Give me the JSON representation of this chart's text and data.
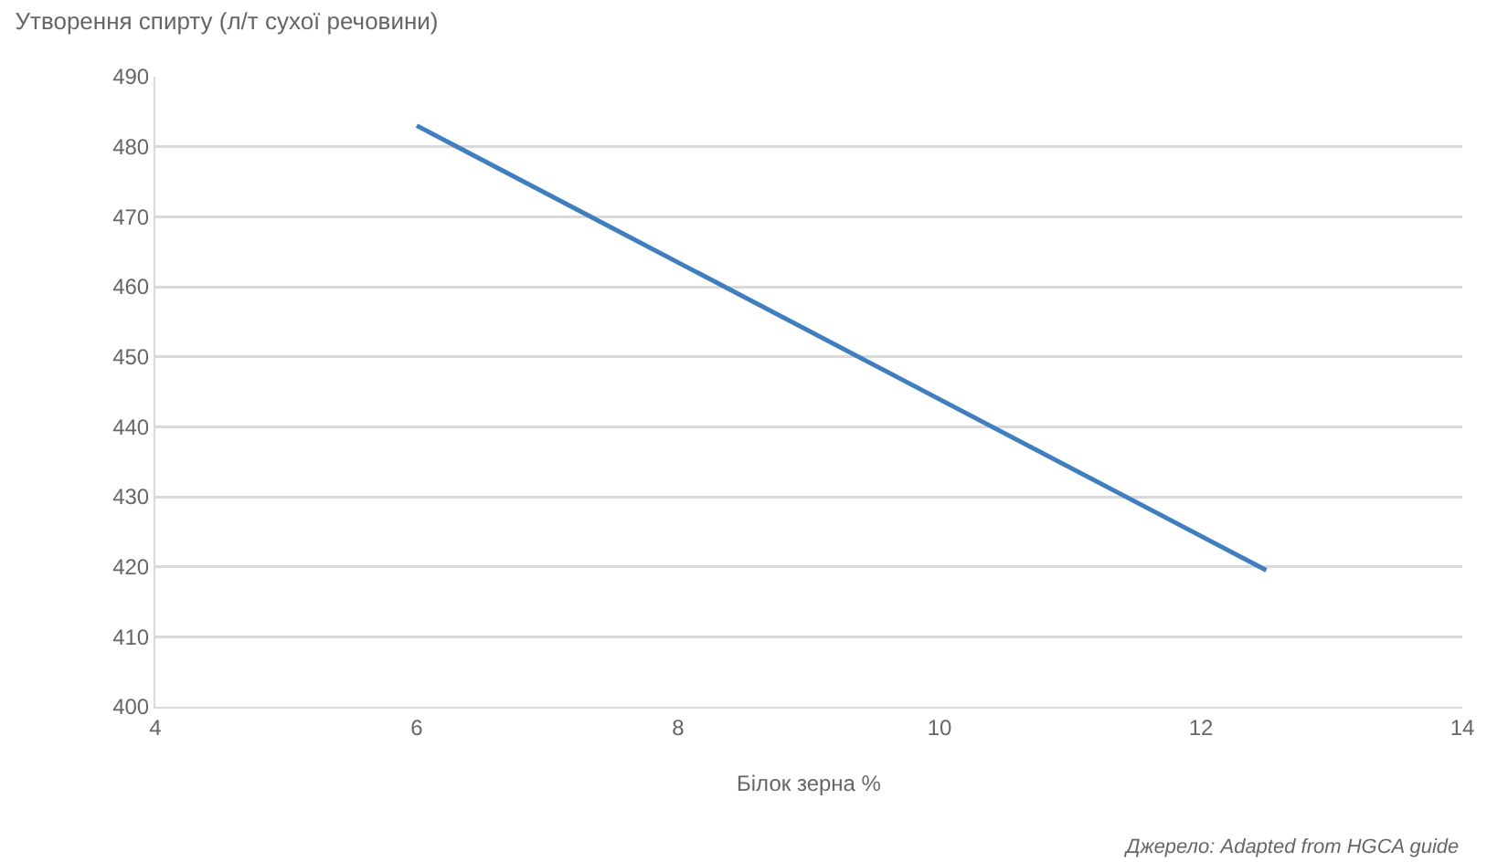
{
  "chart_data": {
    "type": "line",
    "title": "Утворення спирту (л/т сухої речовини)",
    "xlabel": "Білок зерна %",
    "annotations": [
      "Джерело: Adapted from HGCA guide"
    ],
    "x": [
      6,
      12.5
    ],
    "series": [
      {
        "color": "#3f7fbf",
        "values": [
          483,
          419.5
        ]
      }
    ],
    "xlim": [
      4,
      14
    ],
    "xticks": [
      4,
      6,
      8,
      10,
      12,
      14
    ],
    "ylim": [
      400,
      490
    ],
    "yticks": [
      400,
      410,
      420,
      430,
      440,
      450,
      460,
      470,
      480,
      490
    ],
    "grid": "y",
    "marker": "none",
    "line_style": "solid"
  }
}
